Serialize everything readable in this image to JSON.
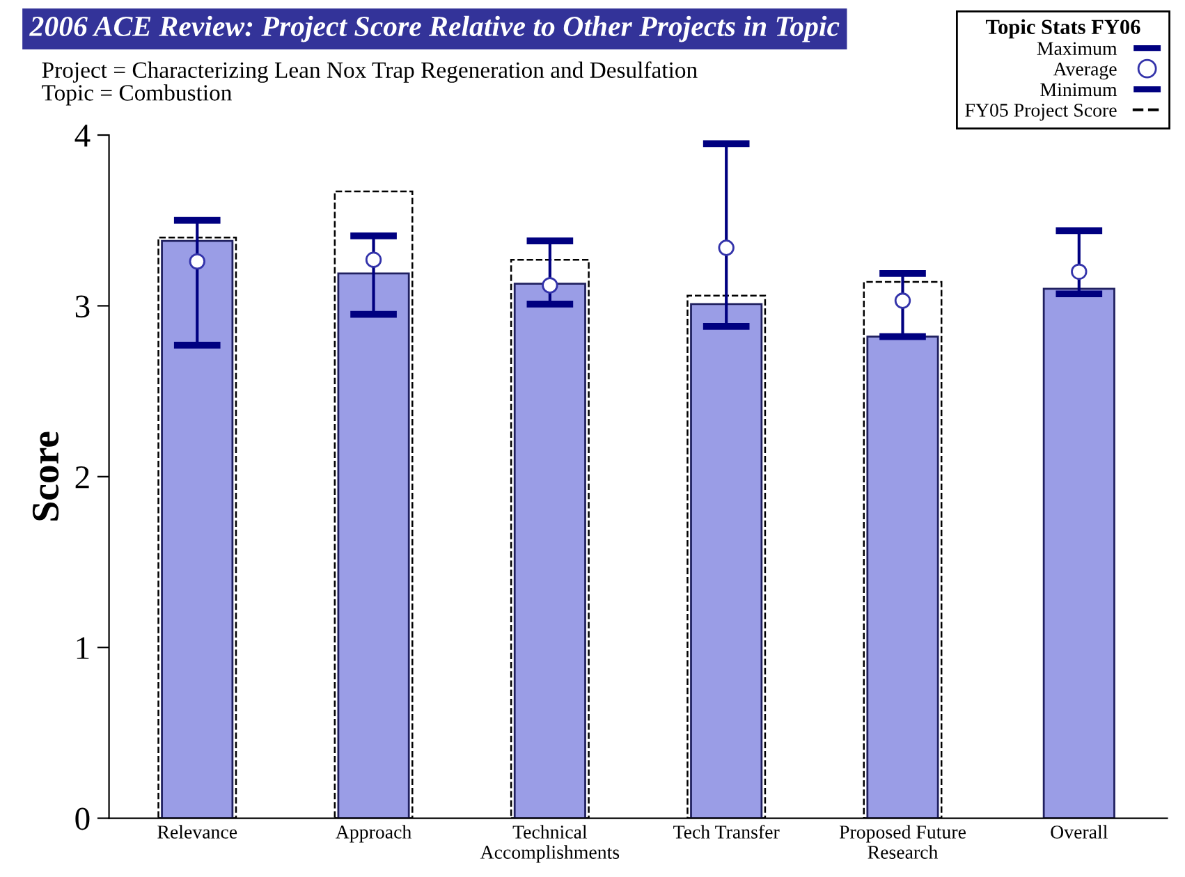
{
  "chart_data": {
    "type": "bar",
    "title": "2006 ACE Review: Project Score Relative to Other Projects in Topic",
    "subtitle": "Project = Characterizing Lean Nox Trap Regeneration and Desulfation\nTopic = Combustion",
    "ylabel": "Score",
    "legend_title": "Topic Stats FY06",
    "legend": "top right",
    "categories": [
      "Relevance",
      "Approach",
      "Technical\nAccomplishments",
      "Tech Transfer",
      "Proposed Future\nResearch",
      "Overall"
    ],
    "ylim": [
      0,
      4
    ],
    "yticks": [
      0,
      1,
      2,
      3,
      4
    ],
    "grid": false,
    "annotations": [
      "Maximum",
      "Minimum"
    ],
    "series": [
      {
        "color": "#9a9de6",
        "values": [
          3.38,
          3.19,
          3.13,
          3.01,
          2.82,
          3.1
        ]
      },
      {
        "name": "FY05 Project Score",
        "color": "#000000",
        "line_style": "dashed",
        "values": [
          3.4,
          3.67,
          3.27,
          3.06,
          3.14,
          null
        ]
      },
      {
        "type": "scatter",
        "name": "Average",
        "color": "#3333aa",
        "marker": "circle",
        "values": [
          3.26,
          3.27,
          3.12,
          3.34,
          3.03,
          3.2
        ],
        "errors": [
          [
            2.77,
            3.5
          ],
          [
            2.95,
            3.41
          ],
          [
            3.01,
            3.38
          ],
          [
            2.88,
            3.95
          ],
          [
            2.82,
            3.19
          ],
          [
            3.07,
            3.44
          ]
        ]
      }
    ]
  }
}
